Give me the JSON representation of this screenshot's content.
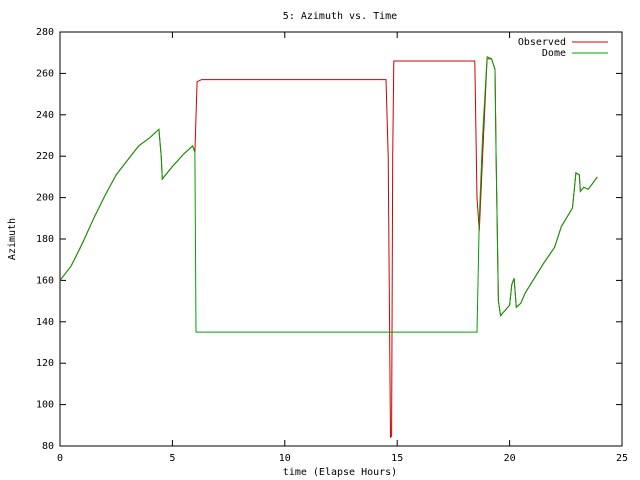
{
  "chart_data": {
    "type": "line",
    "title": "5: Azimuth vs. Time",
    "x_label": "time (Elapse Hours)",
    "y_label": "Azimuth",
    "xlim": [
      0,
      25
    ],
    "xticks": [
      0,
      5,
      10,
      15,
      20,
      25
    ],
    "ylim": [
      80,
      280
    ],
    "yticks": [
      80,
      100,
      120,
      140,
      160,
      180,
      200,
      220,
      240,
      260,
      280
    ],
    "legend": "top-right",
    "series": [
      {
        "name": "Observed",
        "color": "#d00000",
        "x": [
          0,
          0.5,
          1,
          1.5,
          2,
          2.5,
          3,
          3.5,
          4,
          4.4,
          4.5,
          4.55,
          5,
          5.5,
          5.9,
          6.0,
          6.1,
          6.3,
          14.5,
          14.6,
          14.7,
          14.75,
          14.8,
          14.85,
          18.45,
          18.55,
          18.65,
          18.8,
          19.0,
          19.2,
          19.35,
          19.4,
          19.5,
          19.6,
          20,
          20.1,
          20.2,
          20.3,
          20.5,
          20.7,
          21.5,
          22,
          22.3,
          22.8,
          22.95,
          23.1,
          23.15,
          23.3,
          23.5,
          23.9
        ],
        "values": [
          160,
          167,
          178,
          190,
          201,
          211,
          218,
          225,
          229,
          233,
          220,
          209,
          215,
          221,
          225,
          222,
          256,
          257,
          257,
          220,
          84,
          85,
          220,
          266,
          266,
          200,
          184,
          220,
          267,
          267,
          262,
          220,
          150,
          143,
          148,
          158,
          161,
          147,
          149,
          154,
          168,
          176,
          186,
          195,
          212,
          211,
          203,
          205,
          204,
          210
        ]
      },
      {
        "name": "Dome",
        "color": "#00a000",
        "x": [
          0,
          0.5,
          1,
          1.5,
          2,
          2.5,
          3,
          3.5,
          4,
          4.4,
          4.5,
          4.55,
          5,
          5.5,
          5.9,
          6.0,
          6.05,
          18.55,
          18.65,
          18.8,
          19.0,
          19.2,
          19.35,
          19.4,
          19.5,
          19.6,
          20,
          20.1,
          20.2,
          20.3,
          20.5,
          20.7,
          21.5,
          22,
          22.3,
          22.8,
          22.95,
          23.1,
          23.15,
          23.3,
          23.5,
          23.9
        ],
        "values": [
          160,
          167,
          178,
          190,
          201,
          211,
          218,
          225,
          229,
          233,
          220,
          209,
          215,
          221,
          225,
          222,
          135,
          135,
          190,
          230,
          268,
          267,
          262,
          220,
          150,
          143,
          148,
          158,
          161,
          147,
          149,
          154,
          168,
          176,
          186,
          195,
          212,
          211,
          203,
          205,
          204,
          210
        ]
      }
    ]
  }
}
